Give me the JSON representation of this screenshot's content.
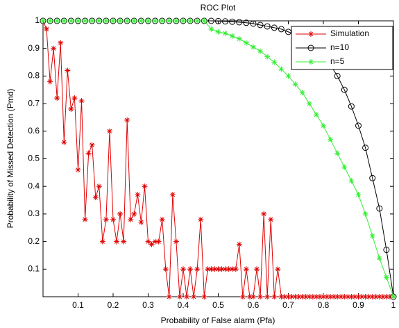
{
  "chart_data": {
    "type": "line",
    "title": "ROC Plot",
    "x_label": "Probability of False alarm (Pfa)",
    "y_label": "Probability of Missed Detection (Pmd)",
    "xlim": [
      0,
      1
    ],
    "ylim": [
      0,
      1
    ],
    "xticks": [
      0.1,
      0.2,
      0.3,
      0.4,
      0.5,
      0.6,
      0.7,
      0.8,
      0.9,
      1
    ],
    "yticks": [
      0.1,
      0.2,
      0.3,
      0.4,
      0.5,
      0.6,
      0.7,
      0.8,
      0.9,
      1
    ],
    "legend": "upper right",
    "series": [
      {
        "name": "Simulation",
        "color": "#e00000",
        "marker": "star",
        "x": [
          0,
          0.01,
          0.02,
          0.03,
          0.04,
          0.05,
          0.06,
          0.07,
          0.08,
          0.09,
          0.1,
          0.11,
          0.12,
          0.13,
          0.14,
          0.15,
          0.16,
          0.17,
          0.18,
          0.19,
          0.2,
          0.21,
          0.22,
          0.23,
          0.24,
          0.25,
          0.26,
          0.27,
          0.28,
          0.29,
          0.3,
          0.31,
          0.32,
          0.33,
          0.34,
          0.35,
          0.36,
          0.37,
          0.38,
          0.39,
          0.4,
          0.41,
          0.42,
          0.43,
          0.44,
          0.45,
          0.46,
          0.47,
          0.48,
          0.49,
          0.5,
          0.51,
          0.52,
          0.53,
          0.54,
          0.55,
          0.56,
          0.57,
          0.58,
          0.59,
          0.6,
          0.61,
          0.62,
          0.63,
          0.64,
          0.65,
          0.66,
          0.67,
          0.68,
          0.69,
          0.7,
          0.71,
          0.72,
          0.73,
          0.74,
          0.75,
          0.76,
          0.77,
          0.78,
          0.79,
          0.8,
          0.81,
          0.82,
          0.83,
          0.84,
          0.85,
          0.86,
          0.87,
          0.88,
          0.89,
          0.9,
          0.91,
          0.92,
          0.93,
          0.94,
          0.95,
          0.96,
          0.97,
          0.98,
          0.99,
          1
        ],
        "values": [
          1,
          0.97,
          0.78,
          0.9,
          0.72,
          0.92,
          0.56,
          0.82,
          0.68,
          0.72,
          0.46,
          0.71,
          0.28,
          0.52,
          0.55,
          0.36,
          0.4,
          0.2,
          0.28,
          0.6,
          0.28,
          0.2,
          0.3,
          0.2,
          0.64,
          0.28,
          0.3,
          0.37,
          0.27,
          0.4,
          0.2,
          0.19,
          0.2,
          0.2,
          0.28,
          0.1,
          0,
          0.37,
          0.2,
          0,
          0.1,
          0,
          0.1,
          0,
          0.1,
          0.28,
          0,
          0.1,
          0.1,
          0.1,
          0.1,
          0.1,
          0.1,
          0.1,
          0.1,
          0.1,
          0.19,
          0,
          0.1,
          0,
          0,
          0.1,
          0,
          0.3,
          0,
          0.28,
          0,
          0.1,
          0,
          0,
          0,
          0,
          0,
          0,
          0,
          0,
          0,
          0,
          0,
          0,
          0,
          0,
          0,
          0,
          0,
          0,
          0,
          0,
          0,
          0,
          0,
          0,
          0,
          0,
          0,
          0,
          0,
          0,
          0,
          0,
          0
        ]
      },
      {
        "name": "n=10",
        "color": "#000000",
        "marker": "circle",
        "x": [
          0,
          0.02,
          0.04,
          0.06,
          0.08,
          0.1,
          0.12,
          0.14,
          0.16,
          0.18,
          0.2,
          0.22,
          0.24,
          0.26,
          0.28,
          0.3,
          0.32,
          0.34,
          0.36,
          0.38,
          0.4,
          0.42,
          0.44,
          0.46,
          0.48,
          0.5,
          0.52,
          0.54,
          0.56,
          0.58,
          0.6,
          0.62,
          0.64,
          0.66,
          0.68,
          0.7,
          0.72,
          0.74,
          0.76,
          0.78,
          0.8,
          0.82,
          0.84,
          0.86,
          0.88,
          0.9,
          0.92,
          0.94,
          0.96,
          0.98,
          1
        ],
        "values": [
          1,
          1,
          1,
          1,
          1,
          1,
          1,
          1,
          1,
          1,
          1,
          1,
          1,
          1,
          1,
          1,
          1,
          1,
          1,
          1,
          1,
          1,
          1,
          1,
          1,
          0.999,
          0.998,
          0.997,
          0.995,
          0.993,
          0.99,
          0.985,
          0.98,
          0.975,
          0.97,
          0.96,
          0.95,
          0.94,
          0.92,
          0.9,
          0.87,
          0.84,
          0.8,
          0.75,
          0.69,
          0.62,
          0.54,
          0.43,
          0.32,
          0.17,
          0
        ]
      },
      {
        "name": "n=5",
        "color": "#33ee33",
        "marker": "star",
        "x": [
          0,
          0.02,
          0.04,
          0.06,
          0.08,
          0.1,
          0.12,
          0.14,
          0.16,
          0.18,
          0.2,
          0.22,
          0.24,
          0.26,
          0.28,
          0.3,
          0.32,
          0.34,
          0.36,
          0.38,
          0.4,
          0.42,
          0.44,
          0.46,
          0.48,
          0.5,
          0.52,
          0.54,
          0.56,
          0.58,
          0.6,
          0.62,
          0.64,
          0.66,
          0.68,
          0.7,
          0.72,
          0.74,
          0.76,
          0.78,
          0.8,
          0.82,
          0.84,
          0.86,
          0.88,
          0.9,
          0.92,
          0.94,
          0.96,
          0.98,
          1
        ],
        "values": [
          1,
          1,
          1,
          1,
          1,
          1,
          1,
          1,
          1,
          1,
          1,
          1,
          1,
          1,
          1,
          1,
          1,
          1,
          1,
          1,
          1,
          1,
          1,
          1,
          0.97,
          0.96,
          0.955,
          0.945,
          0.935,
          0.92,
          0.905,
          0.89,
          0.87,
          0.85,
          0.825,
          0.8,
          0.77,
          0.74,
          0.7,
          0.66,
          0.62,
          0.57,
          0.52,
          0.47,
          0.42,
          0.37,
          0.3,
          0.22,
          0.14,
          0.07,
          0
        ]
      }
    ]
  }
}
